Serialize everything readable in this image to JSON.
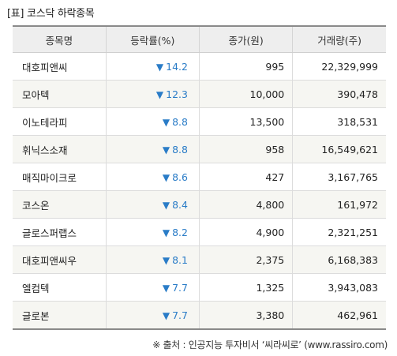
{
  "title": "[표] 코스닥 하락종목",
  "headers": {
    "name": "종목명",
    "rate": "등락률(%)",
    "price": "종가(원)",
    "volume": "거래량(주)"
  },
  "down_arrow": "▼",
  "rows": [
    {
      "name": "대호피앤씨",
      "rate": "14.2",
      "price": "995",
      "volume": "22,329,999"
    },
    {
      "name": "모아텍",
      "rate": "12.3",
      "price": "10,000",
      "volume": "390,478"
    },
    {
      "name": "이노테라피",
      "rate": "8.8",
      "price": "13,500",
      "volume": "318,531"
    },
    {
      "name": "휘닉스소재",
      "rate": "8.8",
      "price": "958",
      "volume": "16,549,621"
    },
    {
      "name": "매직마이크로",
      "rate": "8.6",
      "price": "427",
      "volume": "3,167,765"
    },
    {
      "name": "코스온",
      "rate": "8.4",
      "price": "4,800",
      "volume": "161,972"
    },
    {
      "name": "글로스퍼랩스",
      "rate": "8.2",
      "price": "4,900",
      "volume": "2,321,251"
    },
    {
      "name": "대호피앤씨우",
      "rate": "8.1",
      "price": "2,375",
      "volume": "6,168,383"
    },
    {
      "name": "엘컴텍",
      "rate": "7.7",
      "price": "1,325",
      "volume": "3,943,083"
    },
    {
      "name": "글로본",
      "rate": "7.7",
      "price": "3,380",
      "volume": "462,961"
    }
  ],
  "source": "※ 출처 : 인공지능 투자비서 ‘씨라씨로’ (www.rassiro.com)",
  "colors": {
    "down": "#2a7cc7",
    "header_bg": "#eeeeee",
    "stripe_bg": "#f6f6f2"
  }
}
